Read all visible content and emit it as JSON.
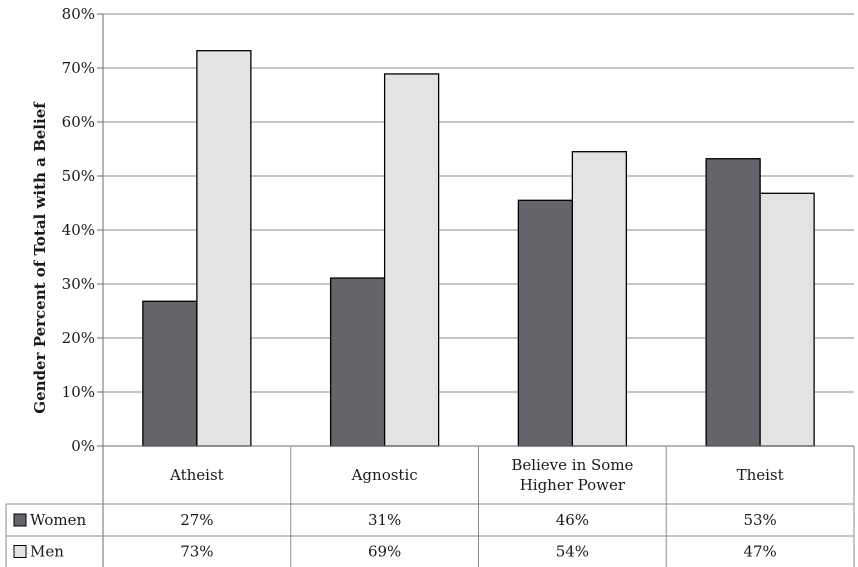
{
  "chart_data": {
    "type": "bar",
    "ylabel": "Gender Percent of Total with a Belief",
    "yticks": [
      "0%",
      "10%",
      "20%",
      "30%",
      "40%",
      "50%",
      "60%",
      "70%",
      "80%"
    ],
    "ylim": [
      0,
      80
    ],
    "grid": true,
    "legend": "data-table-left",
    "categories": [
      [
        "Atheist"
      ],
      [
        "Agnostic"
      ],
      [
        "Believe in Some",
        "Higher Power"
      ],
      [
        "Theist"
      ]
    ],
    "series": [
      {
        "name": "Women",
        "color": "#65646a",
        "values": [
          26.8,
          31.1,
          45.5,
          53.2
        ],
        "labels": [
          "27%",
          "31%",
          "46%",
          "53%"
        ]
      },
      {
        "name": "Men",
        "color": "#e3e3e3",
        "values": [
          73.2,
          68.9,
          54.5,
          46.8
        ],
        "labels": [
          "73%",
          "69%",
          "54%",
          "47%"
        ]
      }
    ]
  }
}
